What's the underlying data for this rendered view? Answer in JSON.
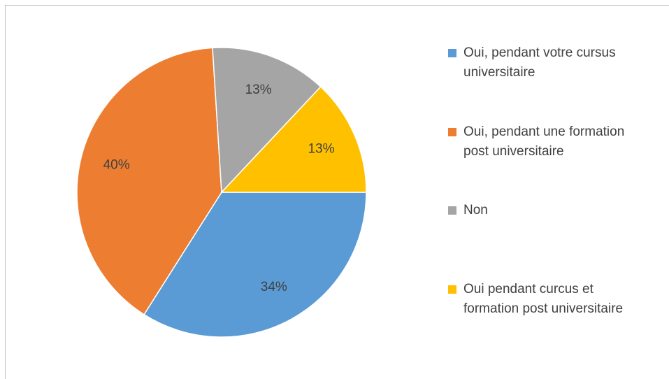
{
  "chart_data": {
    "type": "pie",
    "categories": [
      "Oui, pendant votre cursus universitaire",
      "Oui, pendant une formation post universitaire",
      "Non",
      "Oui pendant curcus et formation post universitaire"
    ],
    "values": [
      34,
      40,
      13,
      13
    ],
    "value_labels": [
      "34%",
      "40%",
      "13%",
      "13%"
    ],
    "colors": [
      "#5b9bd5",
      "#ed7d31",
      "#a5a5a5",
      "#ffc000"
    ],
    "legend": "right"
  }
}
